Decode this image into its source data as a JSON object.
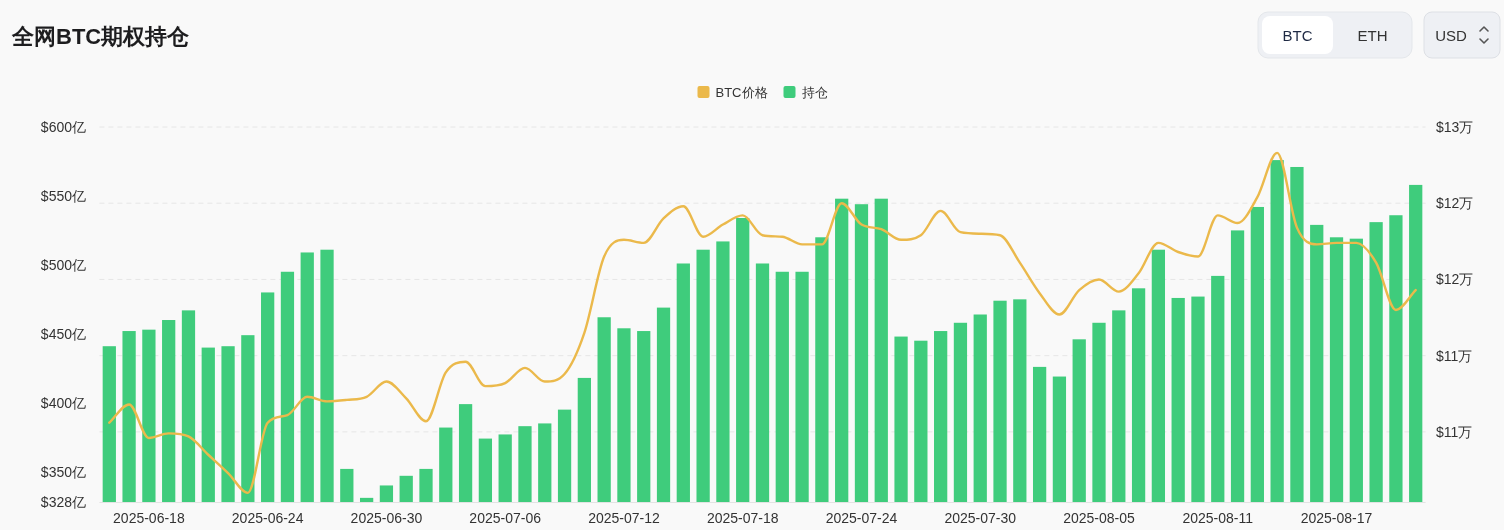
{
  "chart_data": {
    "type": "bar",
    "title": "全网BTC期权持仓",
    "categories": [
      null,
      null,
      "2025-06-18",
      null,
      null,
      null,
      null,
      null,
      "2025-06-24",
      null,
      null,
      null,
      null,
      null,
      "2025-06-30",
      null,
      null,
      null,
      null,
      null,
      "2025-07-06",
      null,
      null,
      null,
      null,
      null,
      "2025-07-12",
      null,
      null,
      null,
      null,
      null,
      "2025-07-18",
      null,
      null,
      null,
      null,
      null,
      "2025-07-24",
      null,
      null,
      null,
      null,
      null,
      "2025-07-30",
      null,
      null,
      null,
      null,
      null,
      "2025-08-05",
      null,
      null,
      null,
      null,
      null,
      "2025-08-11",
      null,
      null,
      null,
      null,
      null,
      "2025-08-17",
      null,
      null,
      null,
      null
    ],
    "series": [
      {
        "name": "BTC价格",
        "type": "line",
        "axis": "y2",
        "color": "#ebb94b",
        "values": [
          10.56,
          10.68,
          10.46,
          10.49,
          10.47,
          10.35,
          10.23,
          10.1,
          10.56,
          10.61,
          10.73,
          10.7,
          10.71,
          10.73,
          10.83,
          10.72,
          10.57,
          10.89,
          10.96,
          10.8,
          10.82,
          10.92,
          10.83,
          10.88,
          11.15,
          11.65,
          11.76,
          11.74,
          11.9,
          11.98,
          11.78,
          11.86,
          11.92,
          11.79,
          11.78,
          11.73,
          11.73,
          12.0,
          11.86,
          11.83,
          11.76,
          11.79,
          11.95,
          11.81,
          11.8,
          11.79,
          11.61,
          11.41,
          11.27,
          11.43,
          11.5,
          11.42,
          11.54,
          11.74,
          11.68,
          11.65,
          11.92,
          11.87,
          12.04,
          12.33,
          11.84,
          11.73,
          11.74,
          11.74,
          11.61,
          11.3,
          11.43
        ]
      },
      {
        "name": "持仓",
        "color": "#3fcc7c",
        "values": [
          441,
          452,
          453,
          460,
          467,
          440,
          441,
          449,
          480,
          495,
          509,
          511,
          352,
          331,
          340,
          347,
          352,
          382,
          399,
          374,
          377,
          383,
          385,
          395,
          418,
          462,
          454,
          452,
          469,
          501,
          511,
          517,
          534,
          501,
          495,
          495,
          520,
          548,
          544,
          548,
          448,
          445,
          452,
          458,
          464,
          474,
          475,
          426,
          419,
          446,
          458,
          467,
          483,
          511,
          476,
          477,
          492,
          525,
          542,
          576,
          571,
          529,
          520,
          519,
          531,
          536,
          558
        ]
      }
    ],
    "ylim": [
      328,
      600
    ],
    "yticks": [
      {
        "value": 328,
        "label": "$328亿"
      },
      {
        "value": 350,
        "label": "$350亿"
      },
      {
        "value": 400,
        "label": "$400亿"
      },
      {
        "value": 450,
        "label": "$450亿"
      },
      {
        "value": 500,
        "label": "$500亿"
      },
      {
        "value": 550,
        "label": "$550亿"
      },
      {
        "value": 600,
        "label": "$600亿"
      }
    ],
    "y2lim": [
      10.04,
      12.5
    ],
    "y2ticks": [
      {
        "value": 10.5,
        "label": "$11万"
      },
      {
        "value": 11,
        "label": "$11万"
      },
      {
        "value": 11.5,
        "label": "$12万"
      },
      {
        "value": 12,
        "label": "$12万"
      },
      {
        "value": 12.5,
        "label": "$13万"
      }
    ],
    "grid": "y",
    "legend": "top",
    "annotations": [
      "BTC",
      "ETH",
      "USD"
    ]
  }
}
